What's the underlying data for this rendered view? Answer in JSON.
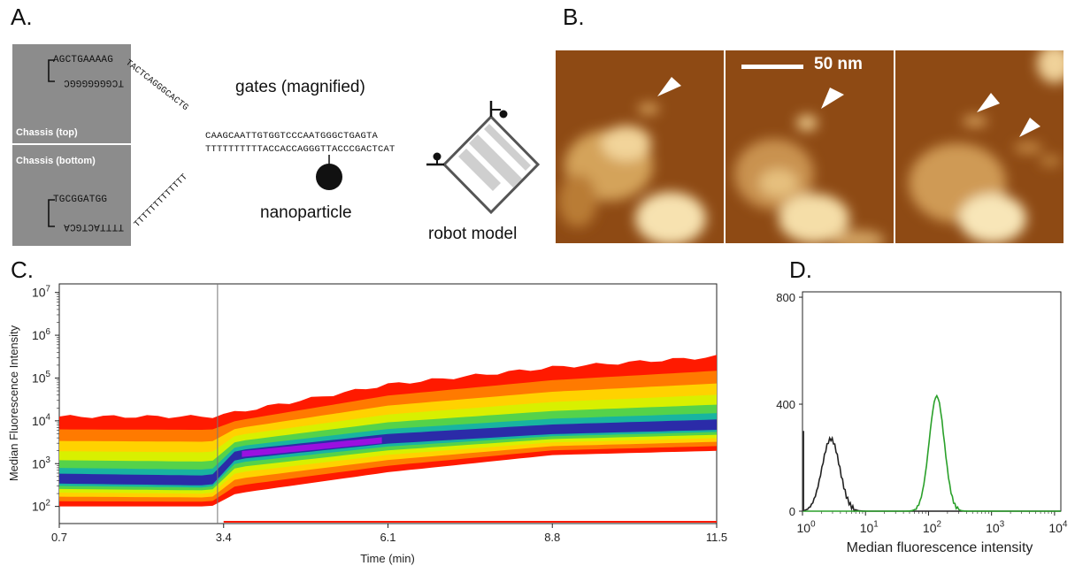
{
  "panels": {
    "a": {
      "letter": "A.",
      "chassis_top_label": "Chassis (top)",
      "chassis_bottom_label": "Chassis (bottom)",
      "top_seq_upper": "AGCTGAAAAG",
      "top_seq_lower": "TCGGGGGGGC",
      "bottom_seq_upper": "TGCGGATGG",
      "bottom_seq_lower": "TTTTACTGCA",
      "arm_upper": "TACTCAGGGCACTG",
      "arm_lower": "TTTTTTTTTTTTT",
      "gate_strand_upper": "CAAGCAATTGTGGTCCCAATGGGCTGAGTA",
      "gate_strand_lower": "TTTTTTTTTTACCACCAGGGTTACCCGACTCAT",
      "gates_label": "gates (magnified)",
      "nanoparticle_label": "nanoparticle",
      "robot_label": "robot model"
    },
    "b": {
      "letter": "B.",
      "scale_label": "50 nm"
    },
    "c": {
      "letter": "C.",
      "ylabel": "Median Fluorescence Intensity",
      "xlabel": "Time (min)"
    },
    "d": {
      "letter": "D.",
      "xlabel": "Median fluorescence intensity"
    }
  },
  "chart_data": [
    {
      "type": "heatmap",
      "panel": "C",
      "xlabel": "Time (min)",
      "ylabel": "Median Fluorescence Intensity",
      "x_ticks": [
        "0.7",
        "3.4",
        "6.1",
        "8.8",
        "11.5"
      ],
      "x_tick_values": [
        0.7,
        3.4,
        6.1,
        8.8,
        11.5
      ],
      "y_ticks": [
        "10^2",
        "10^3",
        "10^4",
        "10^5",
        "10^6",
        "10^7"
      ],
      "y_scale": "log",
      "xlim": [
        0.7,
        11.5
      ],
      "ylim_log10": [
        1.6,
        7.2
      ],
      "marker_line_x": 3.3,
      "density_ridge": [
        {
          "x": 0.7,
          "lo": 2.0,
          "center": 2.6,
          "hi": 4.1
        },
        {
          "x": 3.2,
          "lo": 2.0,
          "center": 2.55,
          "hi": 4.1
        },
        {
          "x": 3.6,
          "lo": 2.3,
          "center": 3.2,
          "hi": 4.2
        },
        {
          "x": 6.1,
          "lo": 2.8,
          "center": 3.55,
          "hi": 4.85
        },
        {
          "x": 8.8,
          "lo": 3.2,
          "center": 3.75,
          "hi": 5.25
        },
        {
          "x": 11.5,
          "lo": 3.3,
          "center": 3.85,
          "hi": 5.5
        }
      ]
    },
    {
      "type": "line",
      "panel": "D",
      "xlabel": "Median fluorescence intensity",
      "x_ticks": [
        "10^0",
        "10^1",
        "10^2",
        "10^3",
        "10^4"
      ],
      "x_scale": "log",
      "xlim_log10": [
        0,
        4.1
      ],
      "y_ticks": [
        "0",
        "400",
        "800"
      ],
      "ylim": [
        0,
        820
      ],
      "series": [
        {
          "color": "#222222",
          "peak_log10": 0.45,
          "peak_count": 270,
          "width": 0.14
        },
        {
          "color": "#2aa02a",
          "peak_log10": 2.13,
          "peak_count": 430,
          "width": 0.12
        }
      ]
    }
  ],
  "colors": {
    "chassis_gray": "#8c8c8c",
    "afm_dark": "#8e4a14",
    "afm_bright": "#fff3c8",
    "heat_red": "#ff1a00",
    "heat_blue": "#2b2ba8",
    "heat_purple": "#9a10e0",
    "hist_green": "#2aa02a"
  }
}
